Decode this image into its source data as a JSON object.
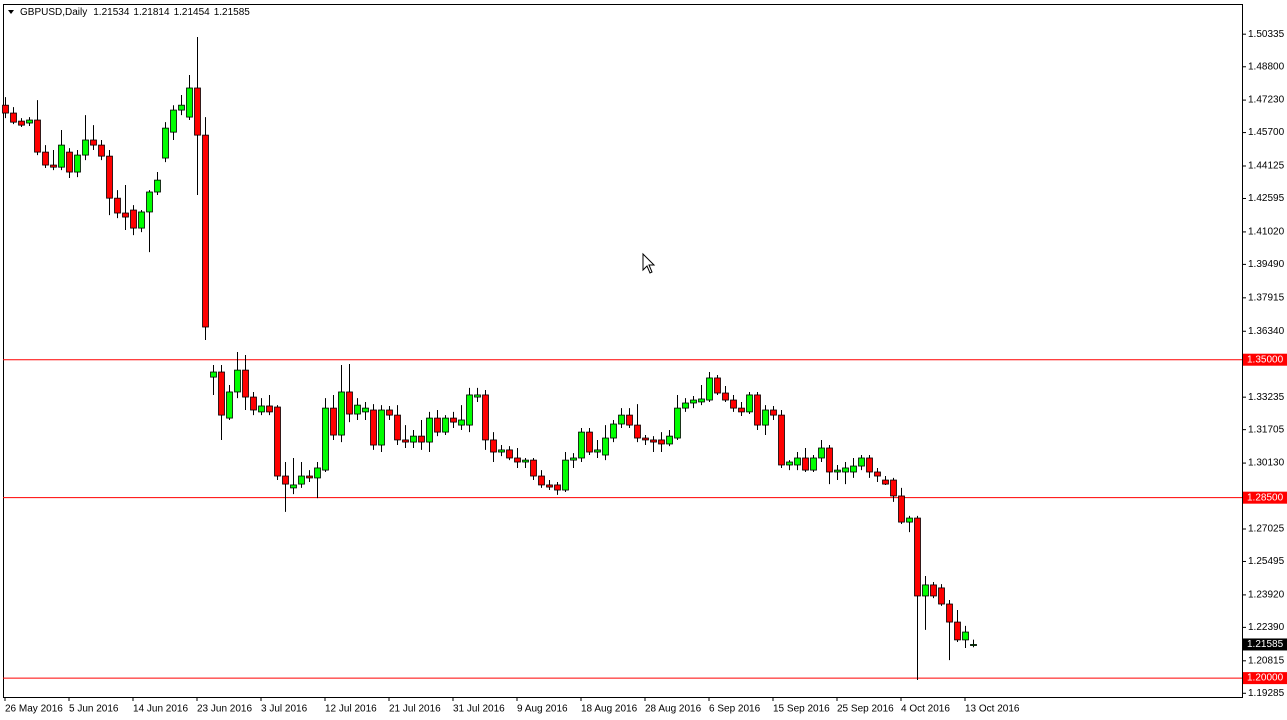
{
  "chart_data": {
    "type": "candlestick",
    "symbol": "GBPUSD,Daily",
    "x_labels": [
      "26 May 2016",
      "5 Jun 2016",
      "14 Jun 2016",
      "23 Jun 2016",
      "3 Jul 2016",
      "12 Jul 2016",
      "21 Jul 2016",
      "31 Jul 2016",
      "9 Aug 2016",
      "18 Aug 2016",
      "28 Aug 2016",
      "6 Sep 2016",
      "15 Sep 2016",
      "25 Sep 2016",
      "4 Oct 2016",
      "13 Oct 2016"
    ],
    "series": [
      {
        "up_color": "#00ff00",
        "down_color": "#ff0000",
        "open": [
          1.4699,
          1.4662,
          1.4624,
          1.4615,
          1.4629,
          1.4478,
          1.4417,
          1.4407,
          1.4478,
          1.4384,
          1.4464,
          1.4535,
          1.4511,
          1.4459,
          1.4261,
          1.4191,
          1.4205,
          1.412,
          1.4196,
          1.429,
          1.445,
          1.4572,
          1.4676,
          1.4643,
          1.478,
          1.4558,
          1.3418,
          1.3442,
          1.3225,
          1.3348,
          1.3451,
          1.3324,
          1.3254,
          1.3282,
          1.3277,
          1.2952,
          1.2896,
          1.2914,
          1.2952,
          1.2943,
          1.298,
          1.3272,
          1.3145,
          1.3348,
          1.3244,
          1.3254,
          1.3263,
          1.3098,
          1.3263,
          1.3239,
          1.3122,
          1.3112,
          1.314,
          1.3112,
          1.3225,
          1.3159,
          1.3225,
          1.3192,
          1.3192,
          1.3324,
          1.3334,
          1.3122,
          1.3065,
          1.3075,
          1.3037,
          1.3018,
          1.3027,
          1.2952,
          1.291,
          1.291,
          1.2886,
          1.3027,
          1.3037,
          1.3159,
          1.3065,
          1.3051,
          1.3131,
          1.3197,
          1.3239,
          1.3192,
          1.3131,
          1.3122,
          1.3122,
          1.3103,
          1.3131,
          1.3272,
          1.3296,
          1.3301,
          1.331,
          1.3414,
          1.3343,
          1.331,
          1.3272,
          1.3254,
          1.3334,
          1.3192,
          1.3263,
          1.3239,
          1.3004,
          1.3004,
          1.3037,
          1.298,
          1.3037,
          1.3084,
          1.2971,
          1.2971,
          1.2971,
          1.2999,
          1.3037,
          1.2971,
          1.2933,
          1.2933,
          1.2858,
          1.2735,
          1.2754,
          1.2387,
          1.2439,
          1.2425,
          1.2349,
          1.2264,
          1.218,
          1.21534
        ],
        "high": [
          1.4737,
          1.469,
          1.4638,
          1.4643,
          1.4723,
          1.4511,
          1.4488,
          1.4582,
          1.4497,
          1.4488,
          1.4652,
          1.4605,
          1.4535,
          1.4488,
          1.4299,
          1.4323,
          1.4228,
          1.4205,
          1.4299,
          1.4384,
          1.4619,
          1.4699,
          1.4747,
          1.4841,
          1.502,
          1.4643,
          1.3475,
          1.3475,
          1.3381,
          1.3536,
          1.3522,
          1.3348,
          1.3319,
          1.3334,
          1.3286,
          1.3018,
          1.3037,
          1.3018,
          1.298,
          1.3018,
          1.3319,
          1.3334,
          1.3475,
          1.348,
          1.3319,
          1.3301,
          1.3291,
          1.3286,
          1.3282,
          1.3286,
          1.3192,
          1.3169,
          1.3216,
          1.3254,
          1.3263,
          1.3239,
          1.3254,
          1.3286,
          1.3367,
          1.3367,
          1.3357,
          1.3159,
          1.3098,
          1.3093,
          1.3084,
          1.3037,
          1.3037,
          1.298,
          1.2933,
          1.2924,
          1.3065,
          1.306,
          1.3178,
          1.3178,
          1.3122,
          1.3192,
          1.3216,
          1.3272,
          1.3272,
          1.3291,
          1.3145,
          1.314,
          1.3159,
          1.3169,
          1.3334,
          1.3319,
          1.3329,
          1.3381,
          1.3442,
          1.3428,
          1.3376,
          1.3334,
          1.3301,
          1.3348,
          1.3348,
          1.3286,
          1.3282,
          1.3263,
          1.3027,
          1.3065,
          1.3084,
          1.3051,
          1.3122,
          1.3098,
          1.3004,
          1.3018,
          1.3037,
          1.3051,
          1.3051,
          1.299,
          1.2952,
          1.2943,
          1.2896,
          1.2764,
          1.2764,
          1.2481,
          1.2453,
          1.2443,
          1.2368,
          1.2321,
          1.2246,
          1.21814
        ],
        "low": [
          1.4638,
          1.461,
          1.4596,
          1.4601,
          1.4464,
          1.4403,
          1.4393,
          1.4393,
          1.4356,
          1.436,
          1.444,
          1.4488,
          1.444,
          1.4181,
          1.4167,
          1.4111,
          1.4087,
          1.4101,
          1.4007,
          1.4276,
          1.4431,
          1.4535,
          1.4652,
          1.4629,
          1.4276,
          1.3593,
          1.3334,
          1.3122,
          1.3216,
          1.3319,
          1.3263,
          1.3239,
          1.3239,
          1.3239,
          1.2933,
          1.2783,
          1.2867,
          1.2896,
          1.2924,
          1.2848,
          1.2971,
          1.3122,
          1.3112,
          1.3206,
          1.3216,
          1.3216,
          1.3075,
          1.3065,
          1.3216,
          1.3098,
          1.3084,
          1.3084,
          1.3075,
          1.3065,
          1.314,
          1.3145,
          1.3178,
          1.3169,
          1.3159,
          1.3301,
          1.3075,
          1.3018,
          1.3046,
          1.3027,
          1.299,
          1.299,
          1.2933,
          1.2896,
          1.2886,
          1.2863,
          1.2877,
          1.299,
          1.3018,
          1.3051,
          1.3037,
          1.3027,
          1.3112,
          1.3178,
          1.3178,
          1.3112,
          1.3098,
          1.3065,
          1.3065,
          1.3093,
          1.3122,
          1.3254,
          1.3272,
          1.3286,
          1.3301,
          1.3334,
          1.3301,
          1.3254,
          1.3235,
          1.3244,
          1.3169,
          1.3145,
          1.3216,
          1.299,
          1.298,
          1.298,
          1.2971,
          1.2971,
          1.3018,
          1.2914,
          1.2933,
          1.2914,
          1.2943,
          1.298,
          1.2943,
          1.2924,
          1.291,
          1.283,
          1.2726,
          1.2688,
          1.1991,
          1.2227,
          1.2377,
          1.234,
          1.2085,
          1.217,
          1.2142,
          1.21454
        ],
        "close": [
          1.4662,
          1.4619,
          1.4605,
          1.4629,
          1.4478,
          1.4417,
          1.4407,
          1.4511,
          1.4384,
          1.4464,
          1.4535,
          1.4511,
          1.4459,
          1.4261,
          1.4191,
          1.4172,
          1.412,
          1.4196,
          1.429,
          1.4346,
          1.4591,
          1.4676,
          1.4699,
          1.478,
          1.4558,
          1.3654,
          1.3442,
          1.3239,
          1.3348,
          1.3451,
          1.3324,
          1.3263,
          1.3282,
          1.3254,
          1.2952,
          1.2914,
          1.291,
          1.2952,
          1.2943,
          1.299,
          1.3272,
          1.3145,
          1.3348,
          1.3244,
          1.3286,
          1.3272,
          1.3098,
          1.3263,
          1.3239,
          1.3122,
          1.3112,
          1.314,
          1.3112,
          1.3225,
          1.3159,
          1.3225,
          1.3206,
          1.3216,
          1.3334,
          1.3334,
          1.3122,
          1.3065,
          1.3075,
          1.3037,
          1.3018,
          1.3027,
          1.2952,
          1.291,
          1.29,
          1.2886,
          1.3027,
          1.3037,
          1.3159,
          1.3065,
          1.3075,
          1.3131,
          1.3197,
          1.3239,
          1.3192,
          1.3131,
          1.3122,
          1.3112,
          1.3103,
          1.314,
          1.3272,
          1.3296,
          1.331,
          1.3315,
          1.3414,
          1.3343,
          1.331,
          1.3272,
          1.3254,
          1.3334,
          1.3192,
          1.3263,
          1.3239,
          1.3004,
          1.3018,
          1.3037,
          1.298,
          1.3037,
          1.3084,
          1.2971,
          1.298,
          1.299,
          1.2999,
          1.3037,
          1.2971,
          1.2952,
          1.2914,
          1.2858,
          1.2735,
          1.2754,
          1.2387,
          1.2439,
          1.2387,
          1.2349,
          1.2264,
          1.218,
          1.2217,
          1.21585
        ]
      }
    ],
    "ylim": [
      1.1911,
      1.5171
    ],
    "yticks": [
      1.50335,
      {
        "value": 1.488,
        "label": "1.48800"
      },
      {
        "value": 1.4723,
        "label": "1.47230"
      },
      {
        "value": 1.457,
        "label": "1.45700"
      },
      1.44125,
      1.42595,
      {
        "value": 1.4102,
        "label": "1.41020"
      },
      {
        "value": 1.3949,
        "label": "1.39490"
      },
      1.37915,
      {
        "value": 1.3634,
        "label": "1.36340"
      },
      1.33235,
      1.31705,
      {
        "value": 1.3013,
        "label": "1.30130"
      },
      1.27025,
      1.25495,
      {
        "value": 1.2392,
        "label": "1.23920"
      },
      {
        "value": 1.2239,
        "label": "1.22390"
      },
      1.20815,
      1.19285
    ],
    "hlines": [
      {
        "value": 1.35,
        "label": "1.35000"
      },
      {
        "value": 1.285,
        "label": "1.28500"
      },
      {
        "value": 1.2,
        "label": "1.20000"
      }
    ],
    "hline_color": "#ff0000"
  }
}
